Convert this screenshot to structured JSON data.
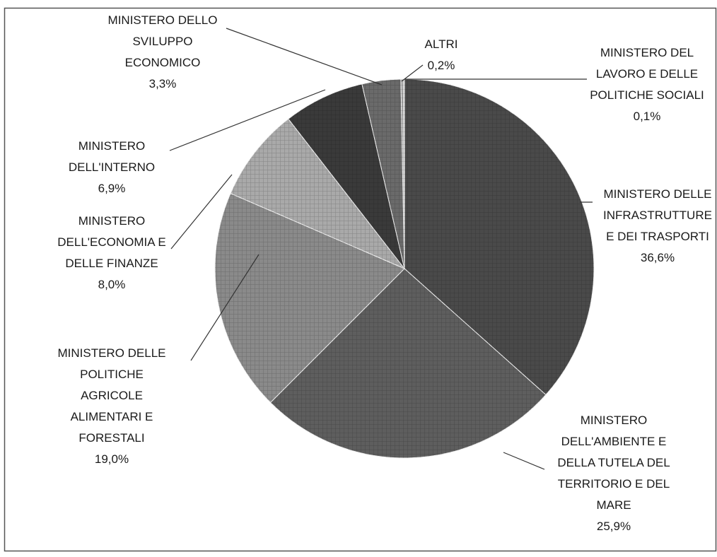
{
  "chart_data": {
    "type": "pie",
    "start": "12 o'clock",
    "direction": "clockwise",
    "slices": [
      {
        "label": "MINISTERO DELLE INFRASTRUTTURE E DEI TRASPORTI",
        "value_label": "36,6%",
        "value": 36.6,
        "color": "#4a4a4a",
        "lines": [
          "MINISTERO DELLE",
          "INFRASTRUTTURE",
          "E DEI TRASPORTI",
          "36,6%"
        ]
      },
      {
        "label": "MINISTERO DELL'AMBIENTE E DELLA TUTELA DEL TERRITORIO E DEL MARE",
        "value_label": "25,9%",
        "value": 25.9,
        "color": "#5e5e5e",
        "lines": [
          "MINISTERO",
          "DELL'AMBIENTE E",
          "DELLA TUTELA DEL",
          "TERRITORIO E DEL",
          "MARE",
          "25,9%"
        ]
      },
      {
        "label": "MINISTERO DELLE POLITICHE AGRICOLE ALIMENTARI E FORESTALI",
        "value_label": "19,0%",
        "value": 19.0,
        "color": "#8a8a8a",
        "lines": [
          "MINISTERO DELLE",
          "POLITICHE",
          "AGRICOLE",
          "ALIMENTARI E",
          "FORESTALI",
          "19,0%"
        ]
      },
      {
        "label": "MINISTERO DELL'ECONOMIA E DELLE FINANZE",
        "value_label": "8,0%",
        "value": 8.0,
        "color": "#a9a9a9",
        "lines": [
          "MINISTERO",
          "DELL'ECONOMIA E",
          "DELLE FINANZE",
          "8,0%"
        ]
      },
      {
        "label": "MINISTERO DELL'INTERNO",
        "value_label": "6,9%",
        "value": 6.9,
        "color": "#3a3a3a",
        "lines": [
          "MINISTERO",
          "DELL'INTERNO",
          "6,9%"
        ]
      },
      {
        "label": "MINISTERO DELLO SVILUPPO ECONOMICO",
        "value_label": "3,3%",
        "value": 3.3,
        "color": "#6a6a6a",
        "lines": [
          "MINISTERO DELLO",
          "SVILUPPO",
          "ECONOMICO",
          "3,3%"
        ]
      },
      {
        "label": "ALTRI",
        "value_label": "0,2%",
        "value": 0.2,
        "color": "#9a9a9a",
        "lines": [
          "ALTRI",
          "0,2%"
        ]
      },
      {
        "label": "MINISTERO DEL LAVORO E DELLE POLITICHE SOCIALI",
        "value_label": "0,1%",
        "value": 0.1,
        "color": "#c8c8c8",
        "lines": [
          "MINISTERO DEL",
          "LAVORO E DELLE",
          "POLITICHE SOCIALI",
          "0,1%"
        ]
      }
    ]
  }
}
